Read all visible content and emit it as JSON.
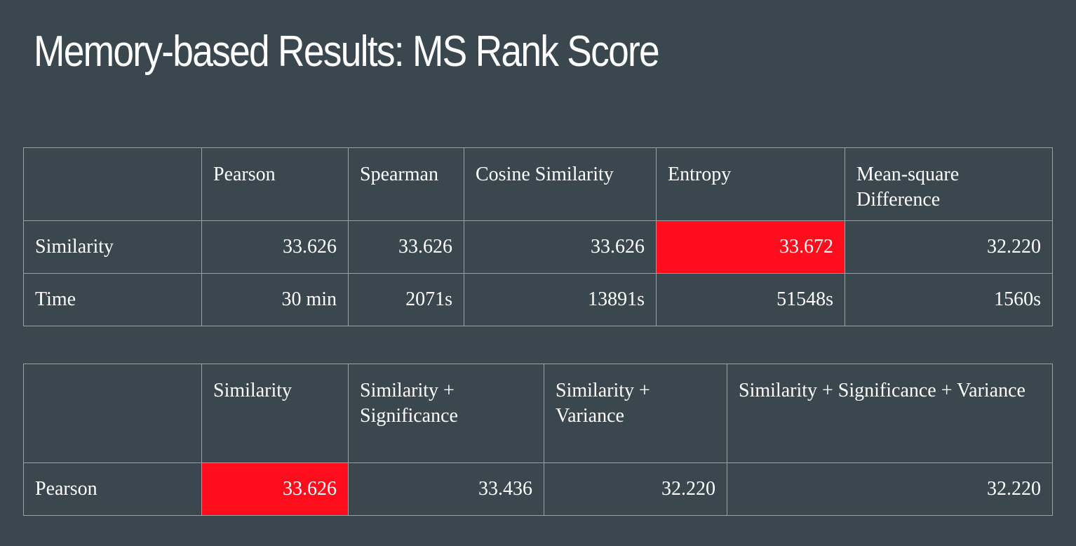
{
  "title": "Memory-based Results: MS Rank Score",
  "table1": {
    "headers": [
      "",
      "Pearson",
      "Spearman",
      "Cosine Similarity",
      "Entropy",
      "Mean-square Difference"
    ],
    "rows": [
      {
        "label": "Similarity",
        "cells": [
          "33.626",
          "33.626",
          "33.626",
          "33.672",
          "32.220"
        ]
      },
      {
        "label": "Time",
        "cells": [
          "30 min",
          "2071s",
          "13891s",
          "51548s",
          "1560s"
        ]
      }
    ],
    "highlight_color": "#ff0d1c"
  },
  "table2": {
    "headers": [
      "",
      "Similarity",
      "Similarity + Significance",
      "Similarity + Variance",
      "Similarity + Significance + Variance"
    ],
    "rows": [
      {
        "label": "Pearson",
        "cells": [
          "33.626",
          "33.436",
          "32.220",
          "32.220"
        ]
      }
    ],
    "highlight_color": "#ff0d1c"
  },
  "colors": {
    "background": "#3a474e",
    "text": "#ffffff",
    "border": "#9aa1a5"
  }
}
